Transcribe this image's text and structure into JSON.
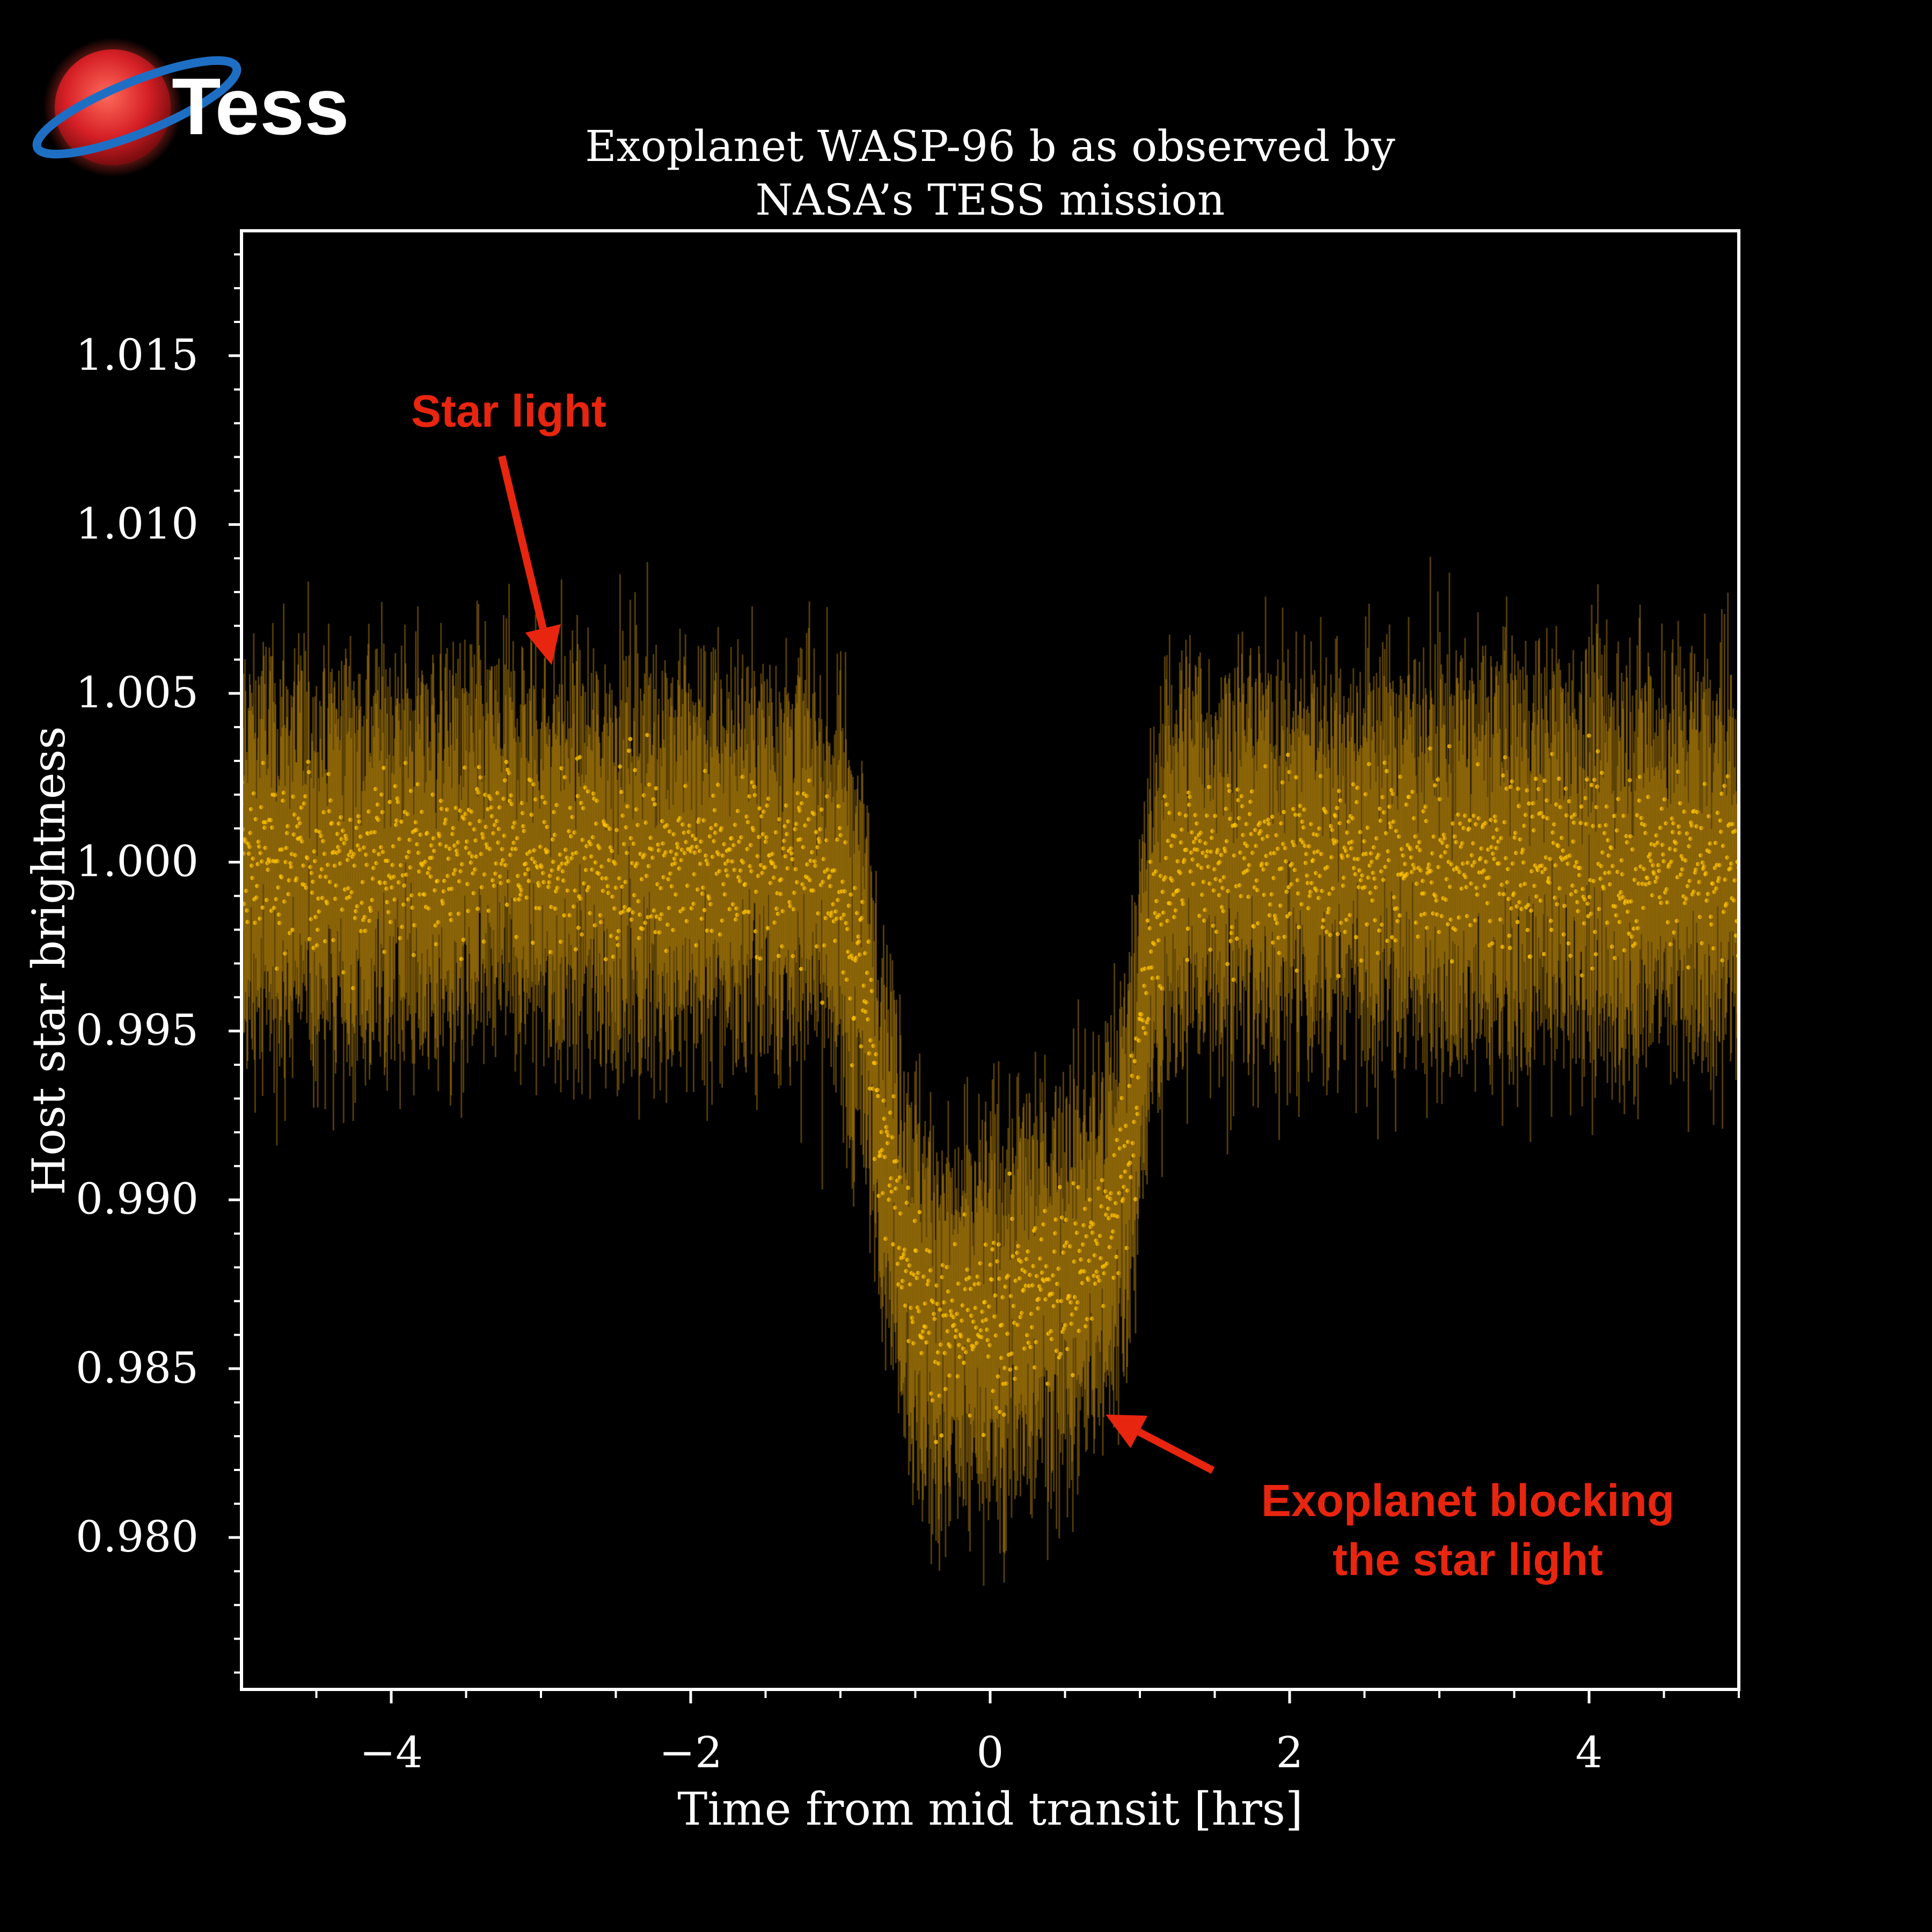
{
  "logo": {
    "text": "Tess"
  },
  "chart_data": {
    "type": "scatter",
    "title": "Exoplanet WASP-96 b as observed by\nNASA’s TESS mission",
    "xlabel": "Time from mid transit [hrs]",
    "ylabel": "Host star brightness",
    "xlim": [
      -5,
      5
    ],
    "ylim": [
      0.9755,
      1.0187
    ],
    "xticks": [
      -4,
      -2,
      0,
      2,
      4
    ],
    "xtick_labels": [
      "−4",
      "−2",
      "0",
      "2",
      "4"
    ],
    "yticks": [
      0.98,
      0.985,
      0.99,
      0.995,
      1.0,
      1.005,
      1.01,
      1.015
    ],
    "ytick_labels": [
      "0.980",
      "0.985",
      "0.990",
      "0.995",
      "1.000",
      "1.005",
      "1.010",
      "1.015"
    ],
    "grid": false,
    "legend": "none",
    "series": [
      {
        "x": [
          -5.0,
          -4.8,
          -4.6,
          -4.4,
          -4.2,
          -4.0,
          -3.8,
          -3.6,
          -3.4,
          -3.2,
          -3.0,
          -2.8,
          -2.6,
          -2.4,
          -2.2,
          -2.0,
          -1.8,
          -1.6,
          -1.4,
          -1.2,
          -1.0,
          -0.9,
          -0.8,
          -0.7,
          -0.6,
          -0.5,
          -0.4,
          -0.3,
          -0.2,
          -0.1,
          0.0,
          0.1,
          0.2,
          0.3,
          0.4,
          0.5,
          0.6,
          0.7,
          0.8,
          0.9,
          1.0,
          1.1,
          1.2,
          1.4,
          1.6,
          1.8,
          2.0,
          2.2,
          2.4,
          2.6,
          2.8,
          3.0,
          3.2,
          3.4,
          3.6,
          3.8,
          4.0,
          4.2,
          4.4,
          4.6,
          4.8,
          5.0
        ],
        "y": [
          1.0,
          1.0002,
          0.9999,
          1.0001,
          1.0,
          1.0002,
          1.0001,
          0.9999,
          1.0,
          1.0002,
          1.0001,
          1.0,
          0.9999,
          1.0001,
          1.0002,
          1.0,
          0.9999,
          1.0001,
          1.0,
          1.0,
          0.999,
          0.9975,
          0.995,
          0.992,
          0.9895,
          0.9875,
          0.9865,
          0.986,
          0.9858,
          0.986,
          0.9863,
          0.9866,
          0.9869,
          0.9872,
          0.9875,
          0.9878,
          0.988,
          0.9882,
          0.989,
          0.991,
          0.9945,
          0.998,
          1.0,
          1.0001,
          1.0,
          1.0002,
          0.9999,
          1.0001,
          1.0,
          1.0001,
          1.0002,
          1.0,
          0.9999,
          1.0001,
          1.0,
          1.0002,
          1.0,
          0.9999,
          1.0001,
          1.0,
          1.0001,
          1.0
        ],
        "scatter": 0.0022
      }
    ],
    "annotations": [
      {
        "text": "Star light",
        "x": -3.0,
        "y": 1.006
      },
      {
        "text": "Exoplanet blocking\nthe star light",
        "x": 0.7,
        "y": 0.9838
      }
    ]
  },
  "colors": {
    "background": "#000000",
    "axes": "#ffffff",
    "points": "#ffc400",
    "errorbars": "#b8860b",
    "annotation": "#e8250f",
    "logo_red": "#d62026",
    "logo_blue": "#1e6fc4"
  }
}
